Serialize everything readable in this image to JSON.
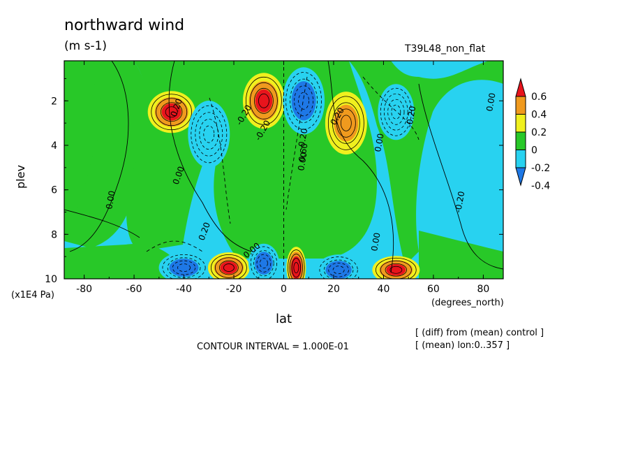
{
  "chart_data": {
    "type": "heatmap",
    "title": "northward wind",
    "units": "(m s-1)",
    "dataset": "T39L48_non_flat",
    "xlabel": "lat",
    "x_units": "(degrees_north)",
    "ylabel": "plev",
    "y_scale_label": "(x1E4 Pa)",
    "xlim": [
      -88,
      88
    ],
    "ylim": [
      10,
      0.2
    ],
    "x_ticks": [
      "-80",
      "-60",
      "-40",
      "-20",
      "0",
      "20",
      "40",
      "60",
      "80"
    ],
    "x_tick_values": [
      -80,
      -60,
      -40,
      -20,
      0,
      20,
      40,
      60,
      80
    ],
    "y_ticks": [
      "2",
      "4",
      "6",
      "8",
      "10"
    ],
    "y_tick_values": [
      2,
      4,
      6,
      8,
      10
    ],
    "contour_interval_text": "CONTOUR INTERVAL = 1.000E-01",
    "notes": [
      "[ (diff) from (mean) control ]",
      "[ (mean) lon:0..357 ]"
    ],
    "colorbar": {
      "labels": [
        "0.6",
        "0.4",
        "0.2",
        "0",
        "-0.2",
        "-0.4"
      ],
      "levels": [
        0.6,
        0.4,
        0.2,
        0,
        -0.2,
        -0.4
      ],
      "colors": [
        "#e8141c",
        "#f09a1e",
        "#f0f01e",
        "#28c828",
        "#28d2f0",
        "#1e78e6"
      ]
    },
    "contour_labels": [
      "0.00",
      "0.20",
      "-0.20",
      "-0.20",
      "0.00",
      "-0.20",
      "0.60",
      "0.00",
      "0.20",
      "-0.20",
      "0.00",
      "-0.20",
      "0.00",
      "0.00",
      "0.00",
      "0.20"
    ],
    "features": [
      {
        "lat": -45,
        "plev": 2.5,
        "value": 0.6
      },
      {
        "lat": -30,
        "plev": 3.5,
        "value": -0.3
      },
      {
        "lat": -8,
        "plev": 2,
        "value": 0.7
      },
      {
        "lat": 8,
        "plev": 2,
        "value": -0.5
      },
      {
        "lat": 25,
        "plev": 3,
        "value": 0.4
      },
      {
        "lat": 45,
        "plev": 2.5,
        "value": -0.3
      },
      {
        "lat": -40,
        "plev": 9.5,
        "value": -0.5
      },
      {
        "lat": -22,
        "plev": 9.5,
        "value": 0.7
      },
      {
        "lat": -8,
        "plev": 9.3,
        "value": -0.5
      },
      {
        "lat": 5,
        "plev": 9.5,
        "value": 0.8
      },
      {
        "lat": 22,
        "plev": 9.6,
        "value": -0.5
      },
      {
        "lat": 45,
        "plev": 9.6,
        "value": 0.7
      }
    ]
  }
}
